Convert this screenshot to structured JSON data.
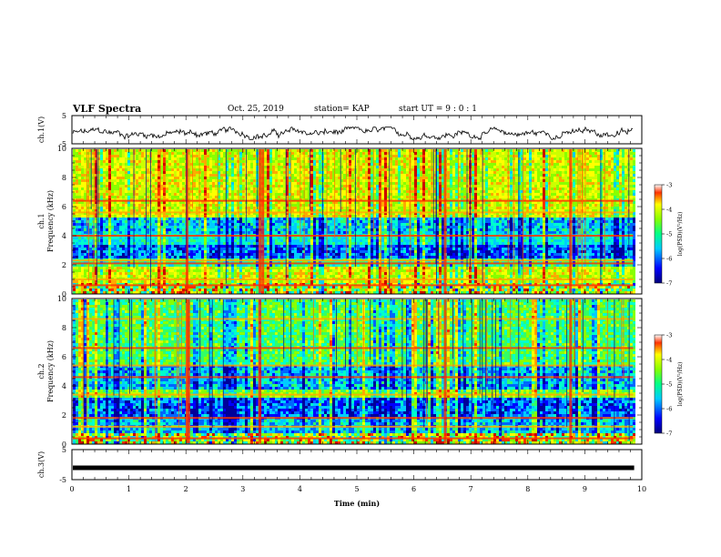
{
  "header": {
    "title": "VLF Spectra",
    "date": "Oct. 25, 2019",
    "station": "station= KAP",
    "start": "start  UT =  9 : 0 : 1"
  },
  "chart_data": [
    {
      "type": "line",
      "panel": "ch1-waveform",
      "ylabel": "ch.1(V)",
      "ylim": [
        -5,
        5
      ],
      "y_ticks": [
        "5",
        "-5"
      ],
      "x_range": [
        0,
        10
      ],
      "data_extent_min": 9.85,
      "description_of_series": "noisy voltage trace oscillating roughly between -2 and +2 V",
      "series": [
        {
          "values_range": [
            -2.2,
            2.2
          ]
        }
      ]
    },
    {
      "type": "heatmap",
      "panel": "ch1-spectrogram",
      "ylabel": "ch.1\nFrequency (kHz)",
      "ylim": [
        0,
        10
      ],
      "y_ticks": [
        "0",
        "2",
        "4",
        "6",
        "8",
        "10"
      ],
      "x_range": [
        0,
        10
      ],
      "data_extent_min": 9.85,
      "colorbar": {
        "label": "log(PSD)(V²/Hz)",
        "range": [
          -7,
          -3
        ],
        "ticks": [
          "-3",
          "-4",
          "-5",
          "-6",
          "-7"
        ]
      },
      "bands_khz": [
        [
          0,
          0.8,
          "mixed"
        ],
        [
          0.8,
          2.0,
          "green-yellow"
        ],
        [
          2.0,
          2.6,
          "cyan-green"
        ],
        [
          2.6,
          3.4,
          "blue"
        ],
        [
          3.4,
          4.2,
          "cyan"
        ],
        [
          4.2,
          5.4,
          "cyan-blue"
        ],
        [
          5.4,
          10,
          "green-yellow"
        ]
      ],
      "horizontal_lines_khz": [
        0.6,
        1.0,
        2.1,
        2.3,
        4.0,
        5.6,
        6.4
      ],
      "vertical_bursts_min": [
        2.02,
        3.3,
        3.35,
        6.55,
        8.75
      ]
    },
    {
      "type": "heatmap",
      "panel": "ch2-spectrogram",
      "ylabel": "ch.2\nFrequency (kHz)",
      "ylim": [
        0,
        10
      ],
      "y_ticks": [
        "0",
        "2",
        "4",
        "6",
        "8",
        "10"
      ],
      "x_range": [
        0,
        10
      ],
      "data_extent_min": 9.85,
      "colorbar": {
        "label": "log(PSD)(V²/Hz)",
        "range": [
          -7,
          -3
        ],
        "ticks": [
          "-3",
          "-4",
          "-5",
          "-6",
          "-7"
        ]
      },
      "bands_khz": [
        [
          0,
          0.8,
          "mixed"
        ],
        [
          0.8,
          2.0,
          "cyan-blue"
        ],
        [
          2.0,
          3.2,
          "blue"
        ],
        [
          3.2,
          3.8,
          "green"
        ],
        [
          3.8,
          5.6,
          "cyan-blue"
        ],
        [
          5.6,
          10,
          "green-cyan"
        ]
      ],
      "horizontal_lines_khz": [
        0.4,
        1.2,
        1.8,
        3.4,
        4.6,
        5.4,
        6.6,
        8.6
      ],
      "vertical_bursts_min": [
        2.02,
        2.05,
        3.3,
        6.55,
        8.75
      ]
    },
    {
      "type": "line",
      "panel": "ch3-waveform",
      "ylabel": "ch.3(V)",
      "ylim": [
        -5,
        5
      ],
      "y_ticks": [
        "5",
        "-5"
      ],
      "x_range": [
        0,
        10
      ],
      "data_extent_min": 9.85,
      "series": [
        {
          "constant_value": 0
        }
      ]
    }
  ],
  "x_axis": {
    "label": "Time  (min)",
    "ticks": [
      "0",
      "1",
      "2",
      "3",
      "4",
      "5",
      "6",
      "7",
      "8",
      "9",
      "10"
    ]
  },
  "colors": {
    "colormap": [
      "#00009a",
      "#0000ff",
      "#0066ff",
      "#00ccff",
      "#00ffcc",
      "#33ff66",
      "#88ff00",
      "#ccff00",
      "#ffff00",
      "#ffaa00",
      "#ff3300",
      "#cc0000"
    ],
    "line": "#000000"
  }
}
